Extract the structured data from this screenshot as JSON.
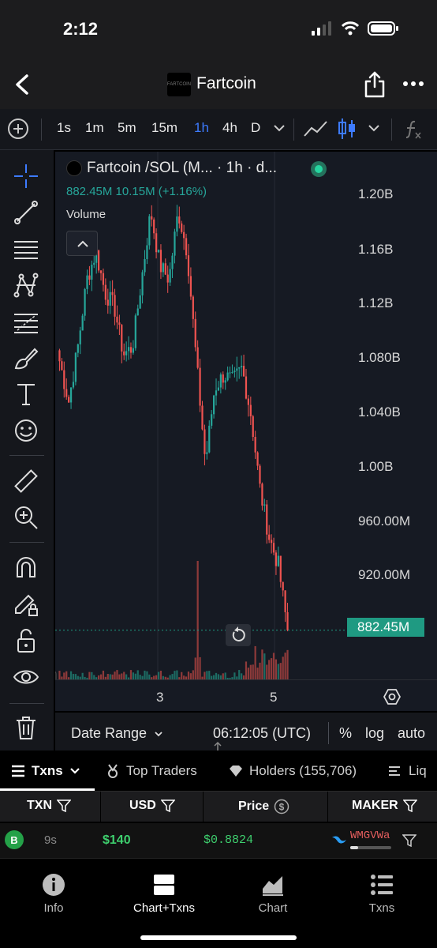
{
  "status_bar": {
    "time": "2:12"
  },
  "header": {
    "title": "Fartcoin",
    "logo_text": "FARTCOIN"
  },
  "timeframes": {
    "items": [
      "1s",
      "1m",
      "5m",
      "15m",
      "1h",
      "4h",
      "D"
    ],
    "active": "1h"
  },
  "chart": {
    "legend_title": "Fartcoin /SOL (M... · 1h · d...",
    "ohlc": "882.45M  10.15M (+1.16%)",
    "volume_label": "Volume",
    "price_labels": [
      "1.20B",
      "1.16B",
      "1.12B",
      "1.080B",
      "1.040B",
      "1.00B",
      "960.00M",
      "920.00M"
    ],
    "last_price": "882.45M",
    "time_labels": [
      "3",
      "5"
    ],
    "colors": {
      "up": "#26a69a",
      "down": "#ef5350",
      "last_price_tag": "#1f9a82"
    }
  },
  "chart_data": {
    "type": "candlestick",
    "title": "Fartcoin /SOL (M... · 1h · d...",
    "xlabel": "",
    "ylabel": "",
    "x_ticks": [
      "3",
      "5"
    ],
    "ylim": [
      870000000,
      1210000000
    ],
    "close_series": [
      1080000000,
      1050000000,
      1090000000,
      1140000000,
      1160000000,
      1130000000,
      1120000000,
      1085000000,
      1090000000,
      1140000000,
      1190000000,
      1150000000,
      1140000000,
      1190000000,
      1160000000,
      1080000000,
      1005000000,
      1060000000,
      1070000000,
      1065000000,
      1075000000,
      1040000000,
      985000000,
      950000000,
      930000000,
      882450000
    ],
    "last_price": 882450000
  },
  "range_bar": {
    "date_range": "Date Range",
    "utc_time": "06:12:05 (UTC)",
    "percent": "%",
    "log": "log",
    "auto": "auto"
  },
  "tabs": {
    "txns": "Txns",
    "top_traders": "Top Traders",
    "holders": "Holders (155,706)",
    "liquidity": "Liq"
  },
  "table": {
    "headers": {
      "txn": "TXN",
      "usd": "USD",
      "price": "Price",
      "maker": "MAKER"
    },
    "rows": [
      {
        "type": "B",
        "age": "9s",
        "usd": "$140",
        "price": "$0.8824",
        "maker": "WMGVWa"
      }
    ]
  },
  "bottom_nav": {
    "info": "Info",
    "chart_txns": "Chart+Txns",
    "chart": "Chart",
    "txns": "Txns"
  }
}
